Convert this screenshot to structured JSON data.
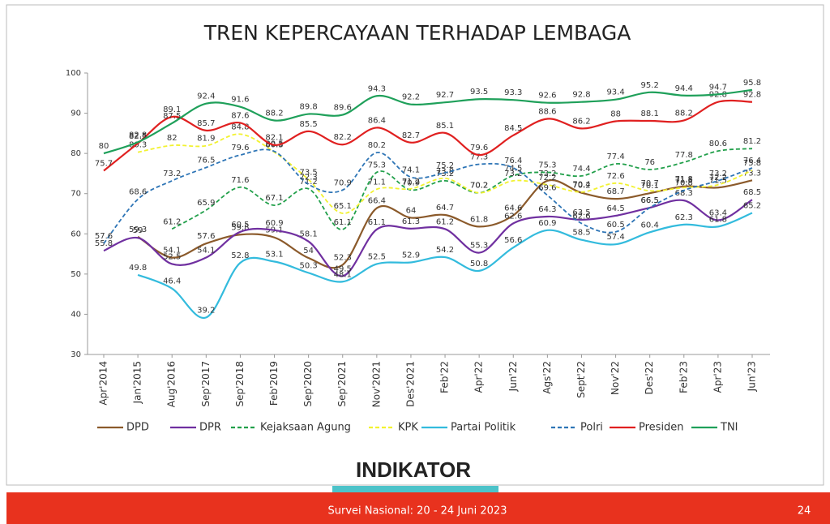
{
  "chart_data": {
    "type": "line",
    "title": "TREN KEPERCAYAAN TERHADAP LEMBAGA",
    "categories": [
      "Apr'2014",
      "Jan'2015",
      "Aug'2016",
      "Sep'2017",
      "Sep'2018",
      "Feb'2019",
      "Sep'2020",
      "Sep'2021",
      "Nov'2021",
      "Des'2021",
      "Feb'22",
      "Apr'22",
      "Jun'22",
      "Ags'22",
      "Sept'22",
      "Nov'22",
      "Des'22",
      "Feb'23",
      "Apr'23",
      "Jun'23"
    ],
    "ylim": [
      30,
      100
    ],
    "yticks": [
      30,
      40,
      50,
      60,
      70,
      80,
      90,
      100
    ],
    "legend": "bottom",
    "series": [
      {
        "name": "DPD",
        "color": "#8b5a2b",
        "dash": false,
        "values": [
          null,
          59.3,
          54.1,
          57.6,
          59.8,
          59.1,
          54.0,
          52.3,
          66.4,
          64.0,
          64.7,
          61.8,
          64.6,
          73.2,
          70.2,
          68.7,
          70.1,
          71.8,
          71.5,
          73.3
        ]
      },
      {
        "name": "DPR",
        "color": "#7030a0",
        "dash": false,
        "values": [
          55.8,
          59.0,
          52.5,
          54.1,
          60.5,
          60.9,
          58.1,
          49.5,
          61.1,
          61.3,
          61.2,
          55.3,
          62.6,
          64.3,
          63.5,
          64.5,
          66.5,
          68.3,
          63.4,
          68.5
        ]
      },
      {
        "name": "Kejaksaan Agung",
        "color": "#22a04b",
        "dash": true,
        "values": [
          null,
          null,
          61.2,
          65.9,
          71.6,
          67.1,
          71.2,
          61.1,
          75.3,
          70.9,
          73.2,
          70.2,
          74.5,
          75.3,
          74.4,
          77.4,
          76.0,
          77.8,
          80.6,
          81.2
        ]
      },
      {
        "name": "KPK",
        "color": "#f2f230",
        "dash": true,
        "values": [
          null,
          80.3,
          82.0,
          81.9,
          84.8,
          80.3,
          73.5,
          65.1,
          71.1,
          71.2,
          73.8,
          70.2,
          73.2,
          72.2,
          70.4,
          72.6,
          70.7,
          71.5,
          72.2,
          75.8
        ]
      },
      {
        "name": "Partai Politik",
        "color": "#33bbdd",
        "dash": false,
        "values": [
          null,
          49.8,
          46.4,
          39.2,
          52.8,
          53.1,
          50.3,
          48.1,
          52.5,
          52.9,
          54.2,
          50.8,
          56.6,
          60.9,
          58.5,
          57.4,
          60.4,
          62.3,
          61.8,
          65.2
        ]
      },
      {
        "name": "Polri",
        "color": "#2e75b6",
        "dash": true,
        "values": [
          57.6,
          68.6,
          73.2,
          76.5,
          79.6,
          80.5,
          72.3,
          70.9,
          80.2,
          74.1,
          75.2,
          77.3,
          76.4,
          69.6,
          62.6,
          60.5,
          66.5,
          70.8,
          73.2,
          76.4
        ]
      },
      {
        "name": "Presiden",
        "color": "#e02020",
        "dash": false,
        "values": [
          75.7,
          82.5,
          89.1,
          85.7,
          87.6,
          82.1,
          85.5,
          82.2,
          86.4,
          82.7,
          85.1,
          79.6,
          84.5,
          88.6,
          86.2,
          88.0,
          88.1,
          88.2,
          92.8,
          92.8
        ]
      },
      {
        "name": "TNI",
        "color": "#1fa05a",
        "dash": false,
        "values": [
          80.0,
          82.8,
          87.5,
          92.4,
          91.6,
          88.2,
          89.8,
          89.6,
          94.3,
          92.2,
          92.7,
          93.5,
          93.3,
          92.6,
          92.8,
          93.4,
          95.2,
          94.4,
          94.7,
          95.8
        ]
      }
    ]
  },
  "logo": "INDIKATOR",
  "footer_text": "Survei Nasional: 20 - 24 Juni 2023",
  "page_number": "24"
}
